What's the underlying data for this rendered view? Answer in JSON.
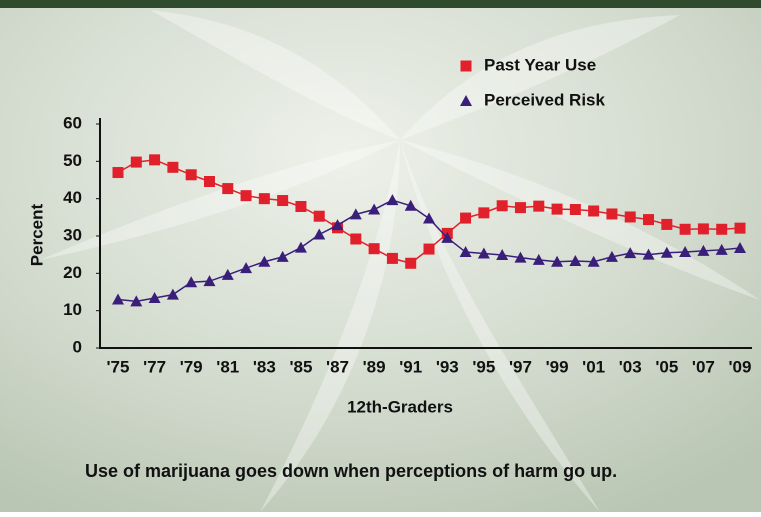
{
  "chart_data": {
    "type": "line",
    "categories": [
      "'75",
      null,
      "'77",
      null,
      "'79",
      null,
      "'81",
      null,
      "'83",
      null,
      "'85",
      null,
      "'87",
      null,
      "'89",
      null,
      "'91",
      null,
      "'93",
      null,
      "'95",
      null,
      "'97",
      null,
      "'99",
      null,
      "'01",
      null,
      "'03",
      null,
      "'05",
      null,
      "'07",
      null,
      "'09"
    ],
    "series": [
      {
        "name": "Past Year Use",
        "color": "#e0202a",
        "marker": "square",
        "values": [
          47,
          49.8,
          50.4,
          48.4,
          46.4,
          44.6,
          42.7,
          40.8,
          40,
          39.5,
          37.9,
          35.3,
          32.2,
          29.2,
          26.6,
          24.0,
          22.7,
          26.5,
          30.7,
          34.8,
          36.2,
          38.1,
          37.6,
          38.0,
          37.2,
          37.1,
          36.7,
          35.9,
          35.1,
          34.4,
          33.1,
          31.8,
          31.9,
          31.8,
          32.1
        ]
      },
      {
        "name": "Perceived Risk",
        "color": "#3a1f7a",
        "marker": "triangle",
        "values": [
          13,
          12.5,
          13.4,
          14.3,
          17.6,
          17.9,
          19.6,
          21.4,
          23.1,
          24.4,
          26.9,
          30.4,
          32.9,
          35.8,
          37.1,
          39.6,
          38.1,
          34.7,
          29.5,
          25.7,
          25.3,
          24.9,
          24.2,
          23.6,
          23.1,
          23.3,
          23.1,
          24.4,
          25.4,
          25.0,
          25.5,
          25.7,
          26.0,
          26.3,
          26.8
        ]
      }
    ],
    "ylim": [
      0,
      60
    ],
    "yticks": [
      0,
      10,
      20,
      30,
      40,
      50,
      60
    ],
    "ylabel": "Percent",
    "xlabel": "12th-Graders",
    "caption": "Use of marijuana goes down when perceptions of harm go up."
  }
}
